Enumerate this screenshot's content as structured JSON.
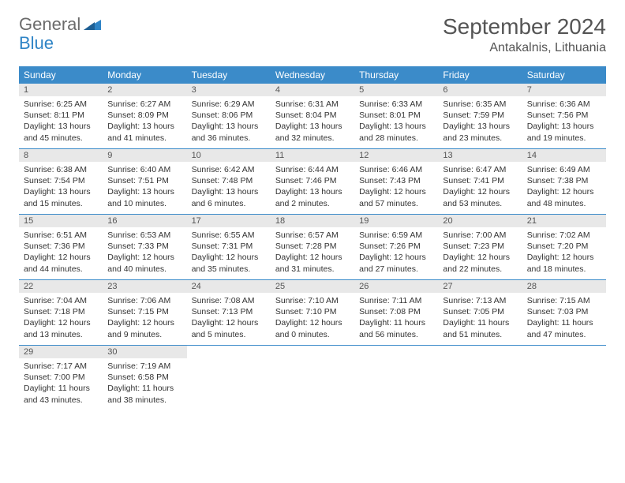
{
  "logo": {
    "word1": "General",
    "word2": "Blue"
  },
  "header": {
    "month_title": "September 2024",
    "location": "Antakalnis, Lithuania"
  },
  "colors": {
    "header_bg": "#3b8bc9",
    "header_text": "#ffffff",
    "daynum_bg": "#e8e8e8",
    "border": "#3b8bc9",
    "logo_gray": "#6b6b6b",
    "logo_blue": "#2f84c6"
  },
  "day_names": [
    "Sunday",
    "Monday",
    "Tuesday",
    "Wednesday",
    "Thursday",
    "Friday",
    "Saturday"
  ],
  "labels": {
    "sunrise": "Sunrise:",
    "sunset": "Sunset:",
    "daylight": "Daylight:"
  },
  "weeks": [
    [
      {
        "day": 1,
        "sunrise": "6:25 AM",
        "sunset": "8:11 PM",
        "daylight": "13 hours and 45 minutes."
      },
      {
        "day": 2,
        "sunrise": "6:27 AM",
        "sunset": "8:09 PM",
        "daylight": "13 hours and 41 minutes."
      },
      {
        "day": 3,
        "sunrise": "6:29 AM",
        "sunset": "8:06 PM",
        "daylight": "13 hours and 36 minutes."
      },
      {
        "day": 4,
        "sunrise": "6:31 AM",
        "sunset": "8:04 PM",
        "daylight": "13 hours and 32 minutes."
      },
      {
        "day": 5,
        "sunrise": "6:33 AM",
        "sunset": "8:01 PM",
        "daylight": "13 hours and 28 minutes."
      },
      {
        "day": 6,
        "sunrise": "6:35 AM",
        "sunset": "7:59 PM",
        "daylight": "13 hours and 23 minutes."
      },
      {
        "day": 7,
        "sunrise": "6:36 AM",
        "sunset": "7:56 PM",
        "daylight": "13 hours and 19 minutes."
      }
    ],
    [
      {
        "day": 8,
        "sunrise": "6:38 AM",
        "sunset": "7:54 PM",
        "daylight": "13 hours and 15 minutes."
      },
      {
        "day": 9,
        "sunrise": "6:40 AM",
        "sunset": "7:51 PM",
        "daylight": "13 hours and 10 minutes."
      },
      {
        "day": 10,
        "sunrise": "6:42 AM",
        "sunset": "7:48 PM",
        "daylight": "13 hours and 6 minutes."
      },
      {
        "day": 11,
        "sunrise": "6:44 AM",
        "sunset": "7:46 PM",
        "daylight": "13 hours and 2 minutes."
      },
      {
        "day": 12,
        "sunrise": "6:46 AM",
        "sunset": "7:43 PM",
        "daylight": "12 hours and 57 minutes."
      },
      {
        "day": 13,
        "sunrise": "6:47 AM",
        "sunset": "7:41 PM",
        "daylight": "12 hours and 53 minutes."
      },
      {
        "day": 14,
        "sunrise": "6:49 AM",
        "sunset": "7:38 PM",
        "daylight": "12 hours and 48 minutes."
      }
    ],
    [
      {
        "day": 15,
        "sunrise": "6:51 AM",
        "sunset": "7:36 PM",
        "daylight": "12 hours and 44 minutes."
      },
      {
        "day": 16,
        "sunrise": "6:53 AM",
        "sunset": "7:33 PM",
        "daylight": "12 hours and 40 minutes."
      },
      {
        "day": 17,
        "sunrise": "6:55 AM",
        "sunset": "7:31 PM",
        "daylight": "12 hours and 35 minutes."
      },
      {
        "day": 18,
        "sunrise": "6:57 AM",
        "sunset": "7:28 PM",
        "daylight": "12 hours and 31 minutes."
      },
      {
        "day": 19,
        "sunrise": "6:59 AM",
        "sunset": "7:26 PM",
        "daylight": "12 hours and 27 minutes."
      },
      {
        "day": 20,
        "sunrise": "7:00 AM",
        "sunset": "7:23 PM",
        "daylight": "12 hours and 22 minutes."
      },
      {
        "day": 21,
        "sunrise": "7:02 AM",
        "sunset": "7:20 PM",
        "daylight": "12 hours and 18 minutes."
      }
    ],
    [
      {
        "day": 22,
        "sunrise": "7:04 AM",
        "sunset": "7:18 PM",
        "daylight": "12 hours and 13 minutes."
      },
      {
        "day": 23,
        "sunrise": "7:06 AM",
        "sunset": "7:15 PM",
        "daylight": "12 hours and 9 minutes."
      },
      {
        "day": 24,
        "sunrise": "7:08 AM",
        "sunset": "7:13 PM",
        "daylight": "12 hours and 5 minutes."
      },
      {
        "day": 25,
        "sunrise": "7:10 AM",
        "sunset": "7:10 PM",
        "daylight": "12 hours and 0 minutes."
      },
      {
        "day": 26,
        "sunrise": "7:11 AM",
        "sunset": "7:08 PM",
        "daylight": "11 hours and 56 minutes."
      },
      {
        "day": 27,
        "sunrise": "7:13 AM",
        "sunset": "7:05 PM",
        "daylight": "11 hours and 51 minutes."
      },
      {
        "day": 28,
        "sunrise": "7:15 AM",
        "sunset": "7:03 PM",
        "daylight": "11 hours and 47 minutes."
      }
    ],
    [
      {
        "day": 29,
        "sunrise": "7:17 AM",
        "sunset": "7:00 PM",
        "daylight": "11 hours and 43 minutes."
      },
      {
        "day": 30,
        "sunrise": "7:19 AM",
        "sunset": "6:58 PM",
        "daylight": "11 hours and 38 minutes."
      },
      null,
      null,
      null,
      null,
      null
    ]
  ]
}
